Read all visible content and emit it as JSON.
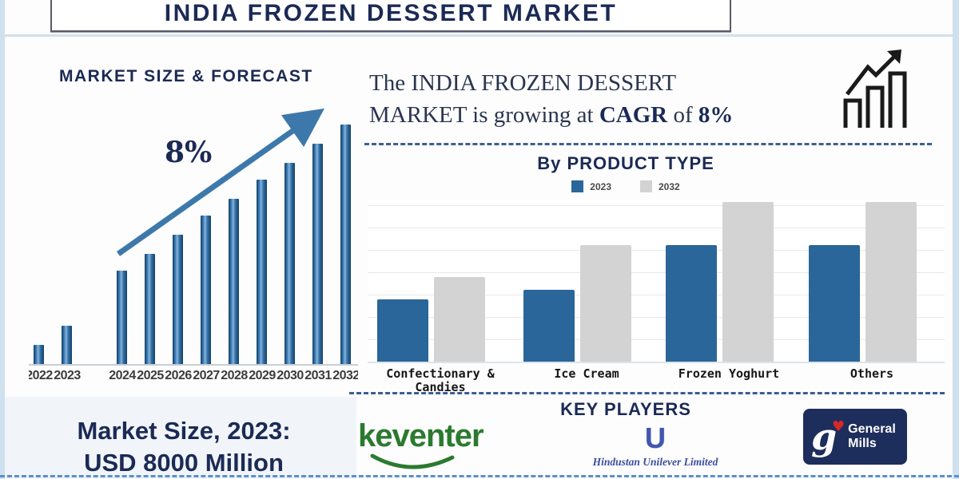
{
  "page_title": "INDIA FROZEN DESSERT MARKET",
  "forecast_section": {
    "heading": "MARKET SIZE & FORECAST",
    "growth_label": "8%"
  },
  "cagr_banner": {
    "line1": "The INDIA FROZEN DESSERT",
    "line2_normal1": "MARKET is growing at ",
    "line2_bold1": "CAGR",
    "line2_normal2": " of ",
    "line2_bold2": "8%"
  },
  "product_section": {
    "heading": "By PRODUCT TYPE",
    "legend": [
      {
        "label": "2023",
        "color": "#2a6699"
      },
      {
        "label": "2032",
        "color": "#d3d3d3"
      }
    ]
  },
  "key_players_section": {
    "heading": "KEY PLAYERS",
    "keventer_text": "keventer",
    "hul_initial": "U",
    "hul_name": "Hindustan Unilever Limited",
    "gm_monogram": "g",
    "gm_heart": "♥",
    "gm_name_line1": "General",
    "gm_name_line2": "Mills"
  },
  "market_size_callout": {
    "line1": "Market Size, 2023:",
    "line2": "USD 8000 Million"
  },
  "colors": {
    "navy_text": "#1b2a55",
    "forecast_bar_blue": "#2f6ca3",
    "product_bar_2023": "#2a6699",
    "product_bar_2032": "#d3d3d3",
    "arrow_blue": "#3d78ab",
    "dashed_line": "#3c5e94",
    "keventer_green": "#2b7a2f",
    "hul_blue": "#4356ad",
    "gm_navy": "#1d2d5c",
    "gm_heart_red": "#d62828"
  },
  "chart_data": [
    {
      "type": "bar",
      "title": "MARKET SIZE & FORECAST",
      "categories": [
        "2022",
        "2023",
        "2024",
        "2025",
        "2026",
        "2027",
        "2028",
        "2029",
        "2030",
        "2031",
        "2032"
      ],
      "values": [
        8,
        16,
        39,
        46,
        54,
        62,
        69,
        77,
        84,
        92,
        100
      ],
      "xlabel": "",
      "ylabel": "",
      "ylim": [
        0,
        100
      ],
      "grid": false,
      "annotation": "8%",
      "note": "values estimated from bar heights (no axis labels shown); 2023 market size USD 8000 Million; growing at CAGR 8%"
    },
    {
      "type": "bar",
      "title": "By PRODUCT TYPE",
      "categories": [
        "Confectionary & Candies",
        "Ice Cream",
        "Frozen Yoghurt",
        "Others"
      ],
      "series": [
        {
          "name": "2023",
          "values": [
            39,
            45,
            73,
            73
          ]
        },
        {
          "name": "2032",
          "values": [
            53,
            73,
            100,
            100
          ]
        }
      ],
      "xlabel": "",
      "ylabel": "",
      "ylim": [
        0,
        100
      ],
      "grid": true,
      "legend_position": "top",
      "note": "values estimated from bar heights (no axis labels shown)"
    }
  ]
}
